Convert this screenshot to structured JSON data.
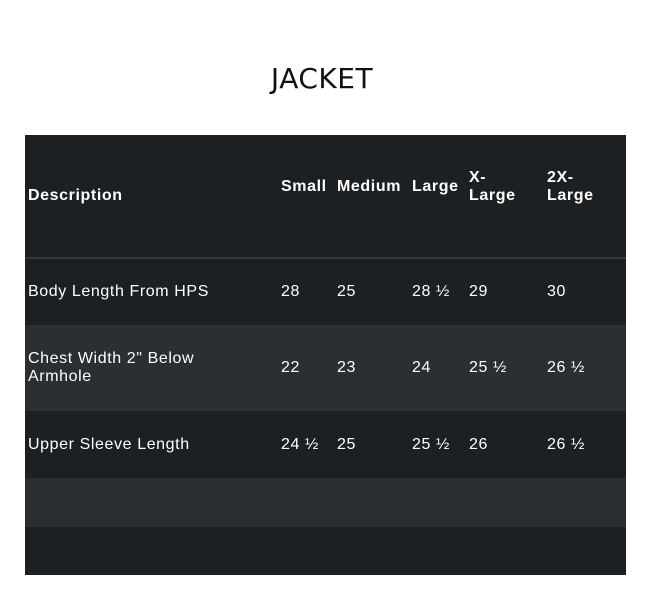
{
  "title": "JACKET",
  "table": {
    "headers": [
      "Description",
      "Small",
      "Medium",
      "Large",
      "X-\nLarge",
      "2X-\nLarge"
    ],
    "rows": [
      [
        "Body Length From HPS",
        "28",
        "25",
        "28 ½",
        "29",
        "30"
      ],
      [
        "Chest Width 2\" Below Armhole",
        "22",
        "23",
        "24",
        "25 ½",
        "26 ½"
      ],
      [
        "Upper Sleeve Length",
        "24 ½",
        "25",
        "25 ½",
        "26",
        "26 ½"
      ],
      [
        "",
        "",
        "",
        "",
        "",
        ""
      ],
      [
        "",
        "",
        "",
        "",
        "",
        ""
      ]
    ]
  },
  "colors": {
    "row_dark": "#1d2023",
    "row_light": "#292f32",
    "text": "#ffffff"
  }
}
